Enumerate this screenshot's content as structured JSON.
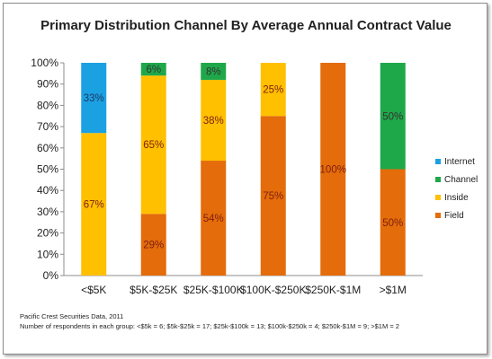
{
  "chart_data": {
    "type": "bar",
    "stacked": true,
    "title": "Primary Distribution Channel By Average Annual Contract Value",
    "categories": [
      "<$5K",
      "$5K-$25K",
      "$25K-$100K",
      "$100K-$250K",
      "$250K-$1M",
      ">$1M"
    ],
    "series": [
      {
        "name": "Field",
        "color": "#e46c0a",
        "label_color": "#7f1f0f",
        "values": [
          0,
          29,
          54,
          75,
          100,
          50
        ]
      },
      {
        "name": "Inside",
        "color": "#ffc000",
        "label_color": "#7f1f0f",
        "values": [
          67,
          65,
          38,
          25,
          0,
          0
        ]
      },
      {
        "name": "Channel",
        "color": "#1fa84a",
        "label_color": "#333333",
        "values": [
          0,
          6,
          8,
          0,
          0,
          50
        ]
      },
      {
        "name": "Internet",
        "color": "#1ba1e2",
        "label_color": "#1f3864",
        "values": [
          33,
          0,
          0,
          0,
          0,
          0
        ]
      }
    ],
    "labels_shown": [
      {
        "series": "Field",
        "values": [
          "",
          "29%",
          "54%",
          "75%",
          "100%",
          "50%"
        ]
      },
      {
        "series": "Inside",
        "values": [
          "67%",
          "65%",
          "38%",
          "25%",
          "",
          ""
        ]
      },
      {
        "series": "Channel",
        "values": [
          "",
          "6%",
          "8%",
          "",
          "",
          "50%"
        ]
      },
      {
        "series": "Internet",
        "values": [
          "33%",
          "",
          "",
          "",
          "",
          ""
        ]
      }
    ],
    "ylim": [
      0,
      100
    ],
    "yticks": [
      "0%",
      "10%",
      "20%",
      "30%",
      "40%",
      "50%",
      "60%",
      "70%",
      "80%",
      "90%",
      "100%"
    ],
    "legend_order": [
      "Internet",
      "Channel",
      "Inside",
      "Field"
    ],
    "legend_position": "right",
    "grid": false
  },
  "footnotes": {
    "source": "Pacific Crest Securities Data, 2011",
    "respondents": "Number of respondents in each group: <$5k = 6; $5k-$25k = 17; $25k-$100k = 13; $100k-$250k = 4; $250k-$1M = 9; >$1M = 2"
  }
}
